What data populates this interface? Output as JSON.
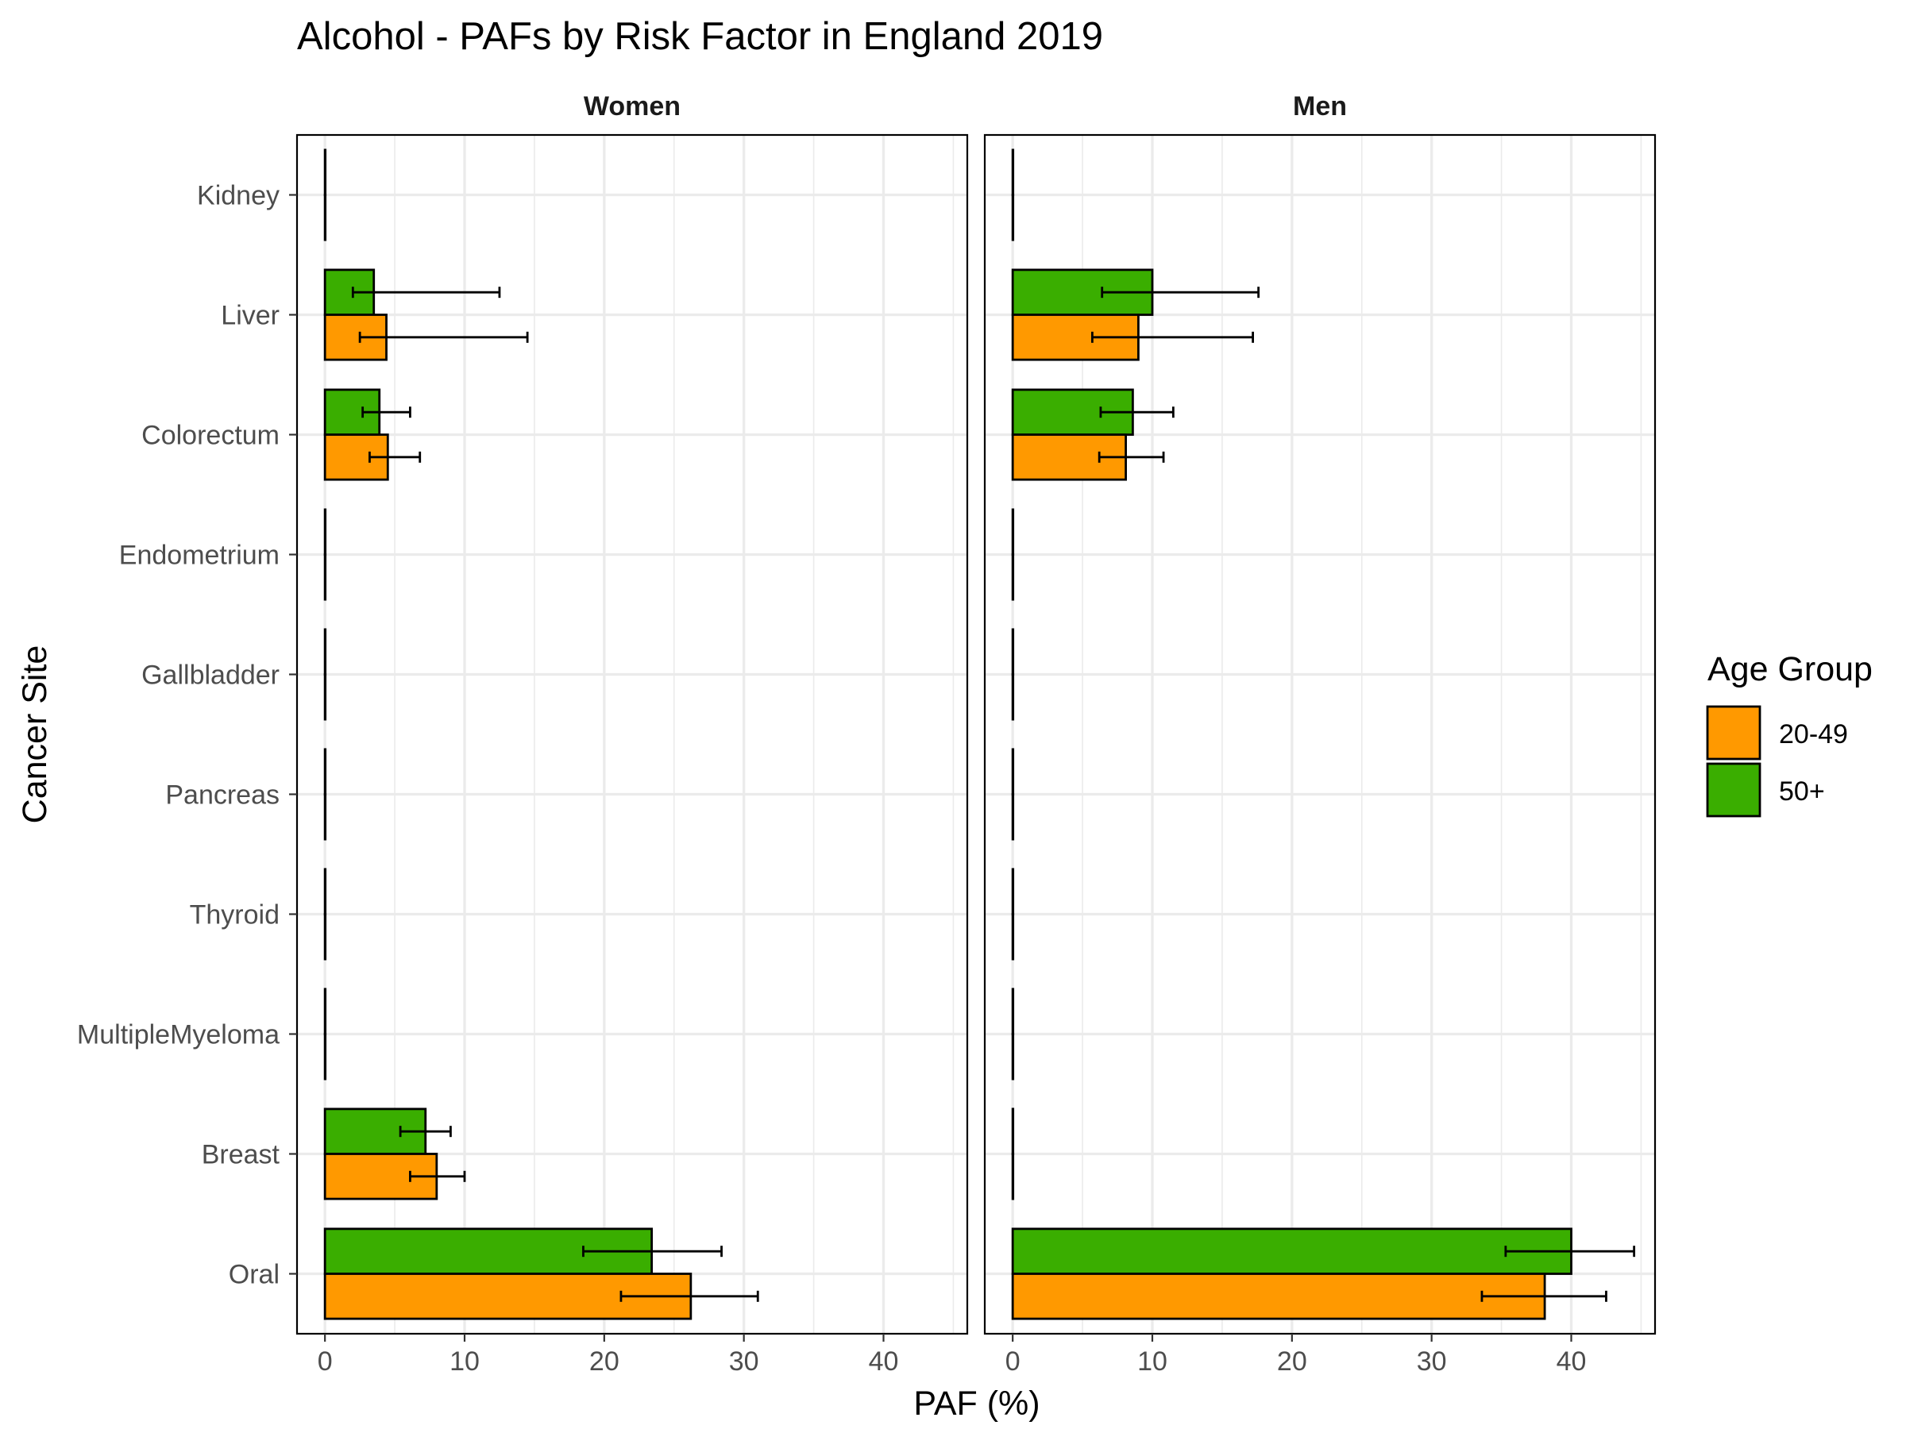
{
  "chart_data": {
    "type": "bar",
    "orientation": "horizontal",
    "title": "Alcohol  - PAFs by Risk Factor in England 2019",
    "xlabel": "PAF (%)",
    "ylabel": "Cancer Site",
    "xlim": [
      -2,
      46
    ],
    "x_ticks": [
      0,
      10,
      20,
      30,
      40
    ],
    "grid": true,
    "legend": {
      "title": "Age Group",
      "position": "right",
      "entries": [
        {
          "label": "20-49",
          "color": "#FF9900"
        },
        {
          "label": "50+",
          "color": "#3AAE00"
        }
      ]
    },
    "categories": [
      "Kidney",
      "Liver",
      "Colorectum",
      "Endometrium",
      "Gallbladder",
      "Pancreas",
      "Thyroid",
      "MultipleMyeloma",
      "Breast",
      "Oral"
    ],
    "panels": [
      {
        "name": "Women",
        "series": [
          {
            "name": "20-49",
            "values": [
              0,
              4.4,
              4.5,
              0,
              0,
              0,
              0,
              0,
              8.0,
              26.2
            ],
            "error_low": [
              0,
              2.5,
              3.2,
              0,
              0,
              0,
              0,
              0,
              6.1,
              21.2
            ],
            "error_high": [
              0,
              14.5,
              6.8,
              0,
              0,
              0,
              0,
              0,
              10.0,
              31.0
            ]
          },
          {
            "name": "50+",
            "values": [
              0,
              3.5,
              3.9,
              0,
              0,
              0,
              0,
              0,
              7.2,
              23.4
            ],
            "error_low": [
              0,
              2.0,
              2.7,
              0,
              0,
              0,
              0,
              0,
              5.4,
              18.5
            ],
            "error_high": [
              0,
              12.5,
              6.1,
              0,
              0,
              0,
              0,
              0,
              9.0,
              28.4
            ]
          }
        ]
      },
      {
        "name": "Men",
        "series": [
          {
            "name": "20-49",
            "values": [
              0,
              9.0,
              8.1,
              0,
              0,
              0,
              0,
              0,
              0,
              38.1
            ],
            "error_low": [
              0,
              5.7,
              6.2,
              0,
              0,
              0,
              0,
              0,
              0,
              33.6
            ],
            "error_high": [
              0,
              17.2,
              10.8,
              0,
              0,
              0,
              0,
              0,
              0,
              42.5
            ]
          },
          {
            "name": "50+",
            "values": [
              0,
              10.0,
              8.6,
              0,
              0,
              0,
              0,
              0,
              0,
              40.0
            ],
            "error_low": [
              0,
              6.4,
              6.3,
              0,
              0,
              0,
              0,
              0,
              0,
              35.3
            ],
            "error_high": [
              0,
              17.6,
              11.5,
              0,
              0,
              0,
              0,
              0,
              0,
              44.5
            ]
          }
        ]
      }
    ]
  }
}
